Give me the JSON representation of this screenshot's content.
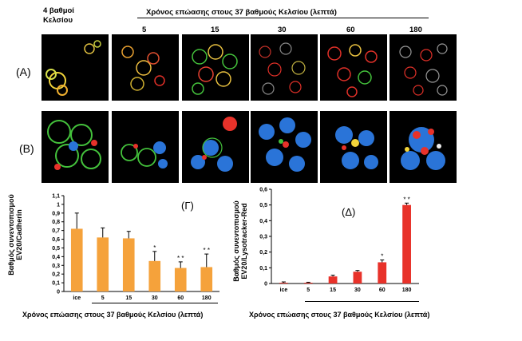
{
  "header": {
    "ice_label": "4 βαθμοί Κελσίου",
    "time_title": "Χρόνος επώασης στους 37 βαθμούς Κελσίου (λεπτά)",
    "times": [
      "5",
      "15",
      "30",
      "60",
      "180"
    ]
  },
  "rows": {
    "A": "(A)",
    "B": "(B)"
  },
  "panels": {
    "C": "(Γ)",
    "D": "(Δ)"
  },
  "colors": {
    "orange": "#f5a23b",
    "red": "#e8322a",
    "green": "#44c23c",
    "blue": "#2a74d8",
    "yellow": "#f2d43a"
  },
  "chart_data": [
    {
      "type": "bar",
      "panel_label": "(Γ)",
      "categories": [
        "ice",
        "5",
        "15",
        "30",
        "60",
        "180"
      ],
      "values": [
        0.72,
        0.62,
        0.61,
        0.35,
        0.27,
        0.28
      ],
      "errors": [
        0.18,
        0.11,
        0.08,
        0.11,
        0.07,
        0.15
      ],
      "significance": [
        "",
        "",
        "",
        "*",
        "* *",
        "* *"
      ],
      "ylim": [
        0,
        1.1
      ],
      "yticks": [
        "0",
        "0,1",
        "0,2",
        "0,3",
        "0,4",
        "0,5",
        "0,6",
        "0,7",
        "0,8",
        "0,9",
        "1",
        "1,1"
      ],
      "ylabel": "Βαθμός συνεντοπισμού EV20/Cadherin",
      "xlabel": "Χρόνος επώασης στους 37 βαθμούς Κελσίου (λεπτά)",
      "color": "#f5a23b"
    },
    {
      "type": "bar",
      "panel_label": "(Δ)",
      "categories": [
        "ice",
        "5",
        "15",
        "30",
        "60",
        "180"
      ],
      "values": [
        0.005,
        0.005,
        0.045,
        0.075,
        0.135,
        0.5
      ],
      "errors": [
        0.005,
        0.003,
        0.008,
        0.008,
        0.015,
        0.012
      ],
      "significance": [
        "",
        "",
        "",
        "",
        "*",
        "* *"
      ],
      "ylim": [
        0,
        0.6
      ],
      "yticks": [
        "0",
        "0,1",
        "0,2",
        "0,3",
        "0,4",
        "0,5",
        "0,6"
      ],
      "ylabel": "Βαθμός συνεντοπισμού EV20/Lysotracker-Red",
      "xlabel": "Χρόνος επώασης στους 37 βαθμούς Κελσίου (λεπτά)",
      "color": "#e8322a"
    }
  ]
}
